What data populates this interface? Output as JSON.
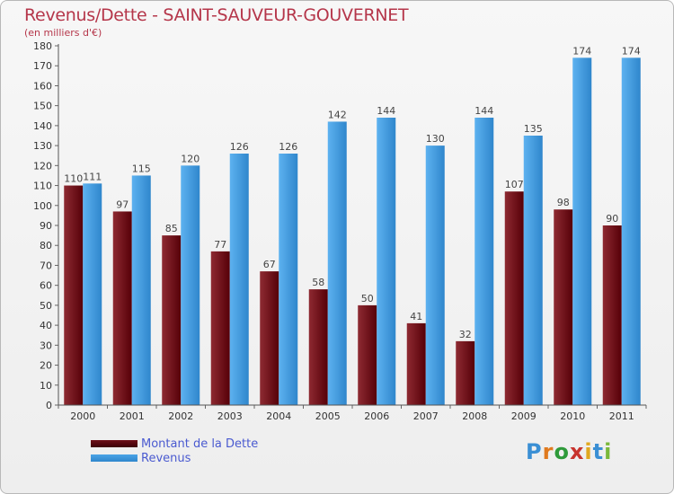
{
  "chart_data": {
    "type": "bar",
    "title": "Revenus/Dette - SAINT-SAUVEUR-GOUVERNET",
    "subtitle": "(en milliers d'€)",
    "categories": [
      "2000",
      "2001",
      "2002",
      "2003",
      "2004",
      "2005",
      "2006",
      "2007",
      "2008",
      "2009",
      "2010",
      "2011"
    ],
    "series": [
      {
        "name": "Montant de la Dette",
        "color": "#6e0f18",
        "values": [
          110,
          97,
          85,
          77,
          67,
          58,
          50,
          41,
          32,
          107,
          98,
          90
        ]
      },
      {
        "name": "Revenus",
        "color": "#4aa3e6",
        "values": [
          111,
          115,
          120,
          126,
          126,
          142,
          144,
          130,
          144,
          135,
          174,
          174
        ]
      }
    ],
    "ylim": [
      0,
      180
    ],
    "ytick_step": 10,
    "grid": false,
    "legend": "bottom-left"
  },
  "logo": {
    "letters": [
      {
        "ch": "P",
        "color": "#3a8fd4"
      },
      {
        "ch": "r",
        "color": "#e07a1f"
      },
      {
        "ch": "o",
        "color": "#2e9a3a"
      },
      {
        "ch": "x",
        "color": "#c8342e"
      },
      {
        "ch": "i",
        "color": "#e0a81f"
      },
      {
        "ch": "t",
        "color": "#3a8fd4"
      },
      {
        "ch": "i",
        "color": "#7ab83a"
      }
    ]
  }
}
